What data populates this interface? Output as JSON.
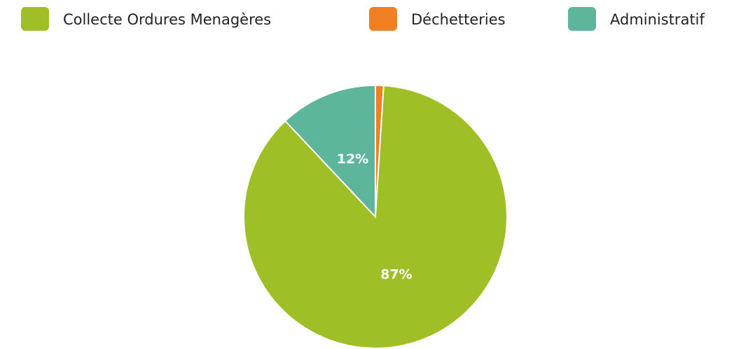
{
  "chart_data": {
    "type": "pie",
    "categories": [
      "Collecte Ordures Menagères",
      "Déchetteries",
      "Administratif"
    ],
    "values": [
      87,
      1,
      12
    ],
    "value_labels": [
      "87%",
      null,
      "12%"
    ],
    "colors": [
      "#9fbf26",
      "#f07f23",
      "#5db59c"
    ]
  }
}
